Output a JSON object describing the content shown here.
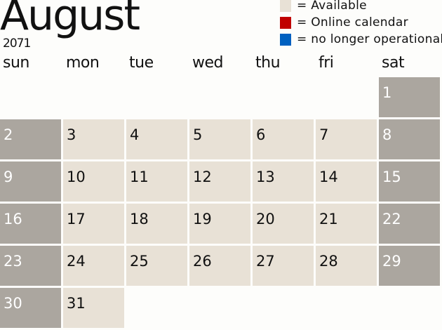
{
  "month": "August",
  "year": "2071",
  "legend": [
    {
      "label": "= Available",
      "color": "#e8e1d6"
    },
    {
      "label": "= Online calendar",
      "color": "#c00000"
    },
    {
      "label": "= no longer operational",
      "color": "#0060c0"
    }
  ],
  "weekdays": [
    "sun",
    "mon",
    "tue",
    "wed",
    "thu",
    "fri",
    "sat"
  ],
  "first_weekday": 6,
  "days": [
    "1",
    "2",
    "3",
    "4",
    "5",
    "6",
    "7",
    "8",
    "9",
    "10",
    "11",
    "12",
    "13",
    "14",
    "15",
    "16",
    "17",
    "18",
    "19",
    "20",
    "21",
    "22",
    "23",
    "24",
    "25",
    "26",
    "27",
    "28",
    "29",
    "30",
    "31"
  ],
  "colors": {
    "weekend": "#aba69f",
    "weekday": "#e8e1d6"
  }
}
